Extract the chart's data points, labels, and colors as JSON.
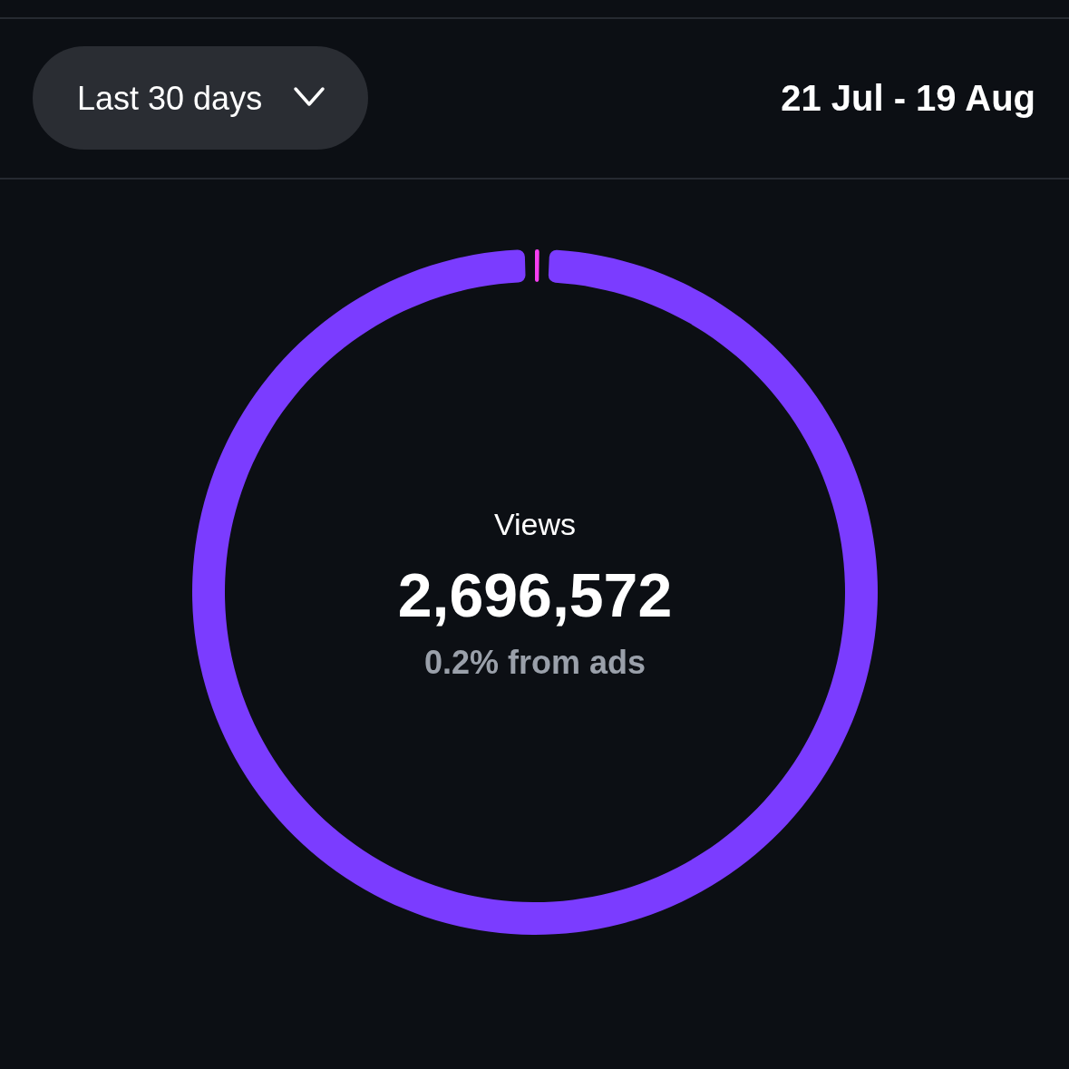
{
  "chart_data": {
    "type": "donut",
    "title": "Views",
    "subtitle": "2,696,572",
    "categories": [
      null,
      null
    ],
    "values": [
      0.2,
      99.8
    ],
    "colors": [
      "#f53ef0",
      "#7b3cff"
    ],
    "annotations": [
      "Last 30 days",
      "21 Jul - 19 Aug",
      "0.2% from ads"
    ]
  }
}
